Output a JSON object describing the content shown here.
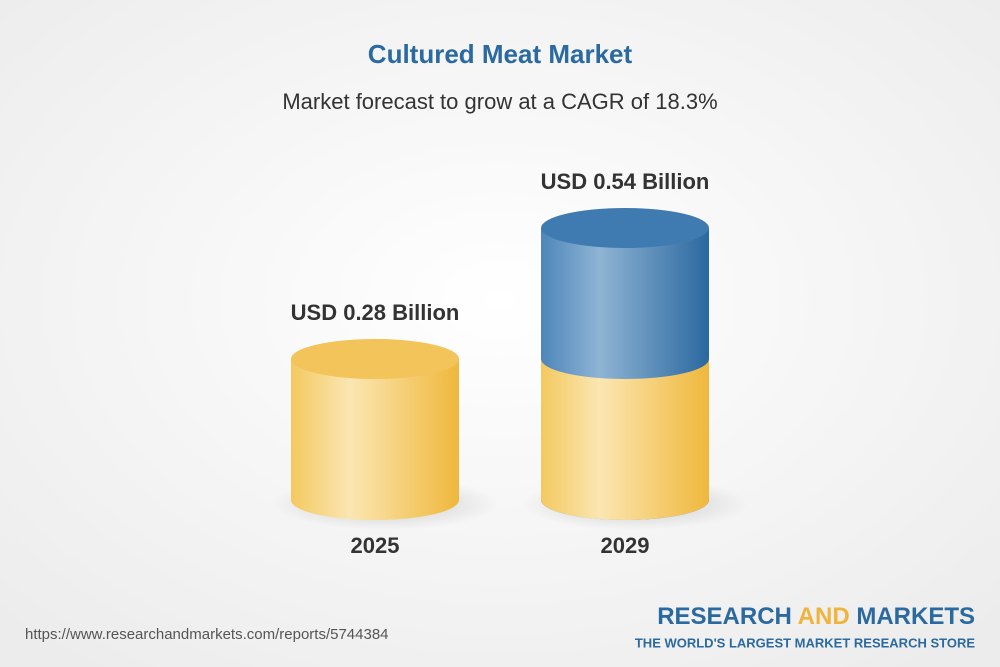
{
  "chart_data": {
    "type": "cylinder",
    "title": "Cultured Meat Market",
    "subtitle": "Market forecast to grow at a CAGR of 18.3%",
    "categories": [
      "2025",
      "2029"
    ],
    "values": [
      0.28,
      0.54
    ],
    "value_labels": [
      "USD 0.28 Billion",
      "USD 0.54 Billion"
    ],
    "colors": [
      "#f2c45a",
      "#3f7bb0"
    ]
  },
  "footer": {
    "url": "https://www.researchandmarkets.com/reports/5744384",
    "brand": [
      "RESEARCH",
      "AND",
      "MARKETS"
    ],
    "tagline": "THE WORLD'S LARGEST MARKET RESEARCH STORE"
  }
}
